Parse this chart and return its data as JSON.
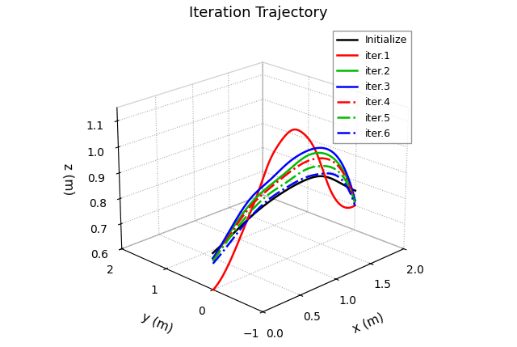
{
  "title": "Iteration Trajectory",
  "xlabel": "x (m)",
  "ylabel": "y (m)",
  "zlabel": "z (m)",
  "xlim": [
    0,
    2
  ],
  "ylim": [
    -1,
    2
  ],
  "zlim": [
    0.6,
    1.15
  ],
  "xticks": [
    0,
    0.5,
    1,
    1.5,
    2
  ],
  "yticks": [
    -1,
    0,
    1,
    2
  ],
  "zticks": [
    0.6,
    0.7,
    0.8,
    0.9,
    1.0,
    1.1
  ],
  "elev": 22,
  "azim": -135,
  "series": [
    {
      "label": "Initialize",
      "color": "#000000",
      "linestyle": "-",
      "linewidth": 1.8,
      "x": [
        0.0,
        0.25,
        0.5,
        0.75,
        1.0,
        1.25,
        1.5,
        1.75,
        2.0
      ],
      "y": [
        0.0,
        0.0,
        0.0,
        0.0,
        0.0,
        0.0,
        0.0,
        0.0,
        0.0
      ],
      "z": [
        0.74,
        0.78,
        0.82,
        0.85,
        0.87,
        0.88,
        0.87,
        0.82,
        0.76
      ]
    },
    {
      "label": "iter.1",
      "color": "#ff0000",
      "linestyle": "-",
      "linewidth": 1.8,
      "x": [
        0.0,
        0.2,
        0.4,
        0.6,
        0.75,
        0.9,
        1.05,
        1.2,
        1.4,
        1.6,
        1.8,
        2.0
      ],
      "y": [
        0.0,
        0.0,
        0.0,
        0.0,
        0.0,
        0.0,
        0.0,
        0.0,
        0.0,
        0.0,
        0.0,
        0.0
      ],
      "z": [
        0.6,
        0.67,
        0.78,
        0.9,
        1.0,
        1.06,
        1.09,
        1.07,
        0.98,
        0.82,
        0.72,
        0.7
      ]
    },
    {
      "label": "iter.2",
      "color": "#00bb00",
      "linestyle": "-",
      "linewidth": 1.8,
      "x": [
        0.0,
        0.25,
        0.5,
        0.75,
        1.0,
        1.25,
        1.5,
        1.75,
        2.0
      ],
      "y": [
        0.0,
        0.0,
        0.0,
        0.0,
        0.0,
        0.0,
        0.0,
        0.0,
        0.0
      ],
      "z": [
        0.72,
        0.8,
        0.87,
        0.91,
        0.94,
        0.97,
        0.96,
        0.89,
        0.72
      ]
    },
    {
      "label": "iter.3",
      "color": "#0000ff",
      "linestyle": "-",
      "linewidth": 1.8,
      "x": [
        0.0,
        0.25,
        0.5,
        0.75,
        1.0,
        1.25,
        1.5,
        1.75,
        2.0
      ],
      "y": [
        0.0,
        0.0,
        0.0,
        0.0,
        0.0,
        0.0,
        0.0,
        0.0,
        0.0
      ],
      "z": [
        0.72,
        0.81,
        0.89,
        0.93,
        0.97,
        0.99,
        0.98,
        0.91,
        0.72
      ]
    },
    {
      "label": "iter.4",
      "color": "#ff0000",
      "linestyle": "-.",
      "linewidth": 1.8,
      "x": [
        0.0,
        0.25,
        0.5,
        0.75,
        1.0,
        1.25,
        1.5,
        1.75,
        2.0
      ],
      "y": [
        0.0,
        0.0,
        0.0,
        0.0,
        0.0,
        0.0,
        0.0,
        0.0,
        0.0
      ],
      "z": [
        0.71,
        0.79,
        0.86,
        0.9,
        0.93,
        0.95,
        0.94,
        0.88,
        0.71
      ]
    },
    {
      "label": "iter.5",
      "color": "#00bb00",
      "linestyle": "-.",
      "linewidth": 1.8,
      "x": [
        0.0,
        0.25,
        0.5,
        0.75,
        1.0,
        1.25,
        1.5,
        1.75,
        2.0
      ],
      "y": [
        0.0,
        0.0,
        0.0,
        0.0,
        0.0,
        0.0,
        0.0,
        0.0,
        0.0
      ],
      "z": [
        0.71,
        0.78,
        0.84,
        0.88,
        0.9,
        0.92,
        0.91,
        0.86,
        0.71
      ]
    },
    {
      "label": "iter.6",
      "color": "#0000ff",
      "linestyle": "-.",
      "linewidth": 1.8,
      "x": [
        0.0,
        0.25,
        0.5,
        0.75,
        1.0,
        1.25,
        1.5,
        1.75,
        2.0
      ],
      "y": [
        0.0,
        0.0,
        0.0,
        0.0,
        0.0,
        0.0,
        0.0,
        0.0,
        0.0
      ],
      "z": [
        0.7,
        0.76,
        0.82,
        0.86,
        0.88,
        0.89,
        0.88,
        0.84,
        0.7
      ]
    }
  ]
}
